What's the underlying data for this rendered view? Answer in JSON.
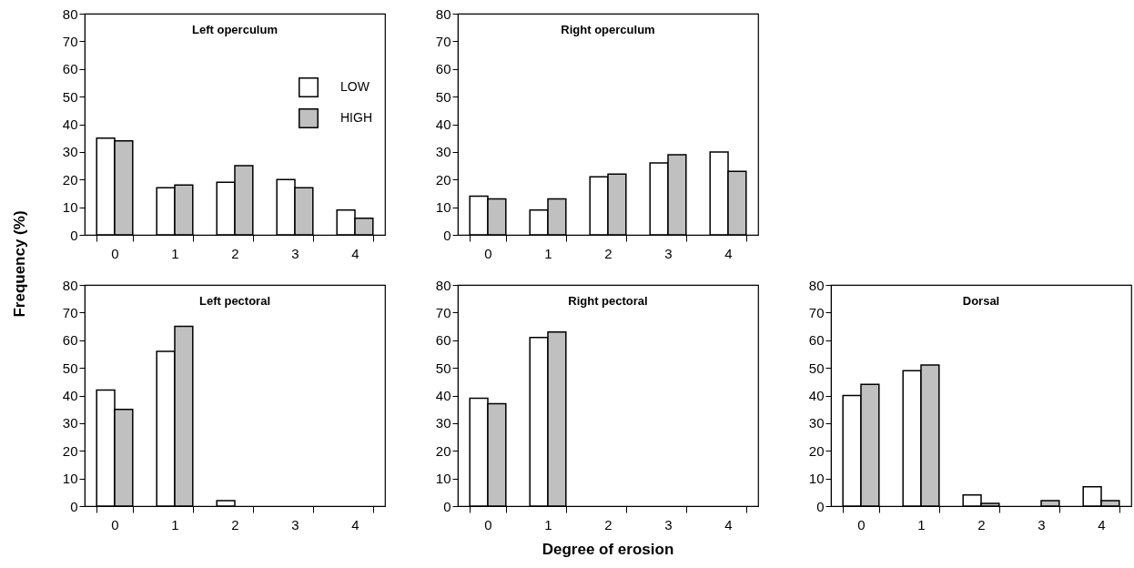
{
  "chart_data": [
    {
      "type": "bar",
      "title": "Left operculum",
      "ylabel": "Frequency (%)",
      "categories": [
        "0",
        "1",
        "2",
        "3",
        "4"
      ],
      "ylim": [
        0,
        80
      ],
      "yticks": [
        0,
        10,
        20,
        30,
        40,
        50,
        60,
        70,
        80
      ],
      "grid": false,
      "legend": "top right",
      "series": [
        {
          "name": "LOW",
          "color": "#ffffff",
          "values": [
            35,
            17,
            19,
            20,
            9
          ]
        },
        {
          "name": "HIGH",
          "color": "#c0c0c0",
          "values": [
            34,
            18,
            25,
            17,
            6
          ]
        }
      ]
    },
    {
      "type": "bar",
      "title": "Right operculum",
      "categories": [
        "0",
        "1",
        "2",
        "3",
        "4"
      ],
      "ylim": [
        0,
        80
      ],
      "yticks": [
        0,
        10,
        20,
        30,
        40,
        50,
        60,
        70,
        80
      ],
      "grid": false,
      "series": [
        {
          "color": "#ffffff",
          "values": [
            14,
            9,
            21,
            26,
            30
          ]
        },
        {
          "color": "#c0c0c0",
          "values": [
            13,
            13,
            22,
            29,
            23
          ]
        }
      ]
    },
    {
      "type": "bar",
      "title": "Left pectoral",
      "categories": [
        "0",
        "1",
        "2",
        "3",
        "4"
      ],
      "ylim": [
        0,
        80
      ],
      "yticks": [
        0,
        10,
        20,
        30,
        40,
        50,
        60,
        70,
        80
      ],
      "grid": false,
      "series": [
        {
          "color": "#ffffff",
          "values": [
            42,
            56,
            2,
            0,
            0
          ]
        },
        {
          "color": "#c0c0c0",
          "values": [
            35,
            65,
            0,
            0,
            0
          ]
        }
      ]
    },
    {
      "type": "bar",
      "title": "Right pectoral",
      "xlabel": "Degree of erosion",
      "categories": [
        "0",
        "1",
        "2",
        "3",
        "4"
      ],
      "ylim": [
        0,
        80
      ],
      "yticks": [
        0,
        10,
        20,
        30,
        40,
        50,
        60,
        70,
        80
      ],
      "grid": false,
      "series": [
        {
          "color": "#ffffff",
          "values": [
            39,
            61,
            0,
            0,
            0
          ]
        },
        {
          "color": "#c0c0c0",
          "values": [
            37,
            63,
            0,
            0,
            0
          ]
        }
      ]
    },
    {
      "type": "bar",
      "title": "Dorsal",
      "categories": [
        "0",
        "1",
        "2",
        "3",
        "4"
      ],
      "ylim": [
        0,
        80
      ],
      "yticks": [
        0,
        10,
        20,
        30,
        40,
        50,
        60,
        70,
        80
      ],
      "grid": false,
      "series": [
        {
          "color": "#ffffff",
          "values": [
            40,
            49,
            4,
            0,
            7
          ]
        },
        {
          "color": "#c0c0c0",
          "values": [
            44,
            51,
            1,
            2,
            2
          ]
        }
      ]
    }
  ]
}
